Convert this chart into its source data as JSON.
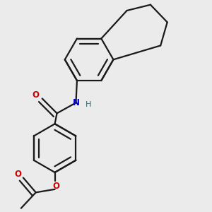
{
  "bg_color": "#ebebeb",
  "bond_color": "#1a1a1a",
  "O_color": "#cc0000",
  "N_color": "#0000cc",
  "H_color": "#336666",
  "line_width": 1.6,
  "figsize": [
    3.0,
    3.0
  ],
  "dpi": 100,
  "xlim": [
    0.0,
    1.0
  ],
  "ylim": [
    0.0,
    1.0
  ]
}
